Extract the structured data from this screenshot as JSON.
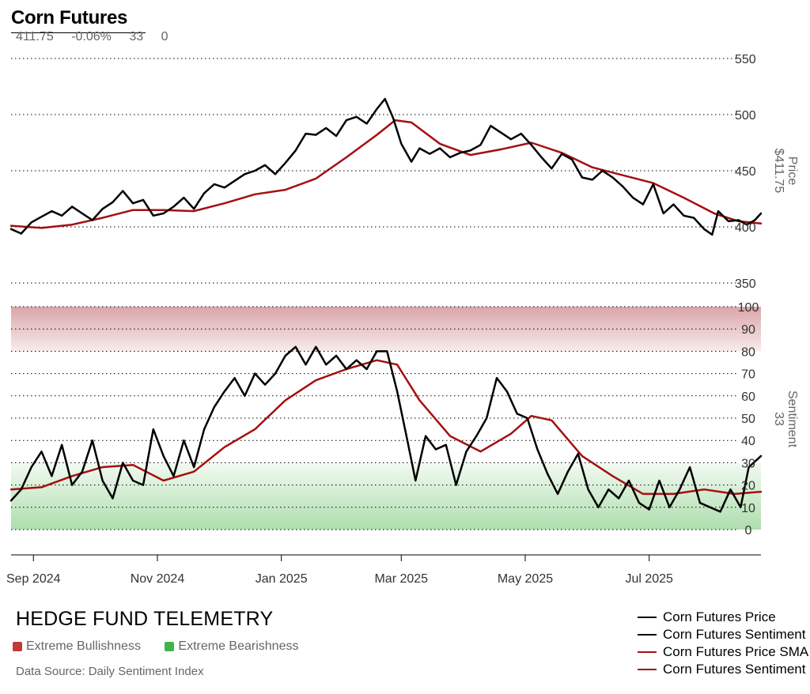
{
  "header": {
    "title": "Corn Futures",
    "last_price": "411.75",
    "change_pct": "-0.06%",
    "sentiment": "33",
    "extra": "0"
  },
  "colors": {
    "price_line": "#000000",
    "sentiment_line": "#000000",
    "sma_line": "#a50f0f",
    "bullish_zone": "#d9a0a4",
    "bearish_zone": "#a9dca9",
    "bullish_swatch": "#c0393b",
    "bearish_swatch": "#3cb54a"
  },
  "footer": {
    "brand": "HEDGE FUND TELEMETRY",
    "bullish_label": "Extreme Bullishness",
    "bearish_label": "Extreme Bearishness",
    "source": "Data Source: Daily Sentiment Index"
  },
  "legend": [
    {
      "label": "Corn Futures Price",
      "color": "#000000"
    },
    {
      "label": "Corn Futures Sentiment",
      "color": "#000000"
    },
    {
      "label": "Corn Futures Price SMA",
      "color": "#a50f0f"
    },
    {
      "label": "Corn Futures Sentiment SMA",
      "color": "#a50f0f"
    }
  ],
  "chart_data": [
    {
      "type": "line",
      "ylabel": "Price",
      "ylabel_value": "$411.75",
      "y_ticks": [
        "550",
        "500",
        "450",
        "400",
        "350"
      ],
      "ylim": [
        350,
        555
      ],
      "x_range": [
        "2024-08-21",
        "2025-08-25"
      ],
      "x_ticks": [
        {
          "date": "2024-09-01",
          "label": "Sep 2024"
        },
        {
          "date": "2024-11-01",
          "label": "Nov 2024"
        },
        {
          "date": "2025-01-01",
          "label": "Jan 2025"
        },
        {
          "date": "2025-03-01",
          "label": "Mar 2025"
        },
        {
          "date": "2025-05-01",
          "label": "May 2025"
        },
        {
          "date": "2025-07-01",
          "label": "Jul 2025"
        }
      ],
      "grid": "horizontal dotted",
      "series": [
        {
          "name": "Corn Futures Price",
          "points": [
            [
              "2024-08-21",
              398
            ],
            [
              "2024-08-26",
              394
            ],
            [
              "2024-08-31",
              404
            ],
            [
              "2024-09-05",
              409
            ],
            [
              "2024-09-10",
              414
            ],
            [
              "2024-09-15",
              410
            ],
            [
              "2024-09-20",
              418
            ],
            [
              "2024-09-25",
              412
            ],
            [
              "2024-09-30",
              406
            ],
            [
              "2024-10-05",
              416
            ],
            [
              "2024-10-10",
              422
            ],
            [
              "2024-10-15",
              432
            ],
            [
              "2024-10-20",
              421
            ],
            [
              "2024-10-25",
              424
            ],
            [
              "2024-10-30",
              410
            ],
            [
              "2024-11-04",
              412
            ],
            [
              "2024-11-09",
              418
            ],
            [
              "2024-11-14",
              426
            ],
            [
              "2024-11-19",
              416
            ],
            [
              "2024-11-24",
              430
            ],
            [
              "2024-11-29",
              438
            ],
            [
              "2024-12-04",
              435
            ],
            [
              "2024-12-09",
              441
            ],
            [
              "2024-12-14",
              447
            ],
            [
              "2024-12-19",
              450
            ],
            [
              "2024-12-24",
              455
            ],
            [
              "2024-12-29",
              447
            ],
            [
              "2025-01-03",
              457
            ],
            [
              "2025-01-08",
              468
            ],
            [
              "2025-01-13",
              483
            ],
            [
              "2025-01-18",
              482
            ],
            [
              "2025-01-23",
              488
            ],
            [
              "2025-01-28",
              481
            ],
            [
              "2025-02-02",
              495
            ],
            [
              "2025-02-07",
              498
            ],
            [
              "2025-02-12",
              492
            ],
            [
              "2025-02-17",
              505
            ],
            [
              "2025-02-21",
              514
            ],
            [
              "2025-02-25",
              497
            ],
            [
              "2025-03-01",
              474
            ],
            [
              "2025-03-06",
              458
            ],
            [
              "2025-03-10",
              470
            ],
            [
              "2025-03-15",
              465
            ],
            [
              "2025-03-20",
              470
            ],
            [
              "2025-03-25",
              462
            ],
            [
              "2025-03-30",
              466
            ],
            [
              "2025-04-04",
              468
            ],
            [
              "2025-04-09",
              473
            ],
            [
              "2025-04-14",
              490
            ],
            [
              "2025-04-19",
              484
            ],
            [
              "2025-04-24",
              478
            ],
            [
              "2025-04-29",
              483
            ],
            [
              "2025-05-04",
              473
            ],
            [
              "2025-05-09",
              462
            ],
            [
              "2025-05-14",
              452
            ],
            [
              "2025-05-19",
              465
            ],
            [
              "2025-05-24",
              460
            ],
            [
              "2025-05-29",
              444
            ],
            [
              "2025-06-03",
              442
            ],
            [
              "2025-06-08",
              450
            ],
            [
              "2025-06-13",
              444
            ],
            [
              "2025-06-18",
              436
            ],
            [
              "2025-06-23",
              426
            ],
            [
              "2025-06-28",
              420
            ],
            [
              "2025-07-03",
              438
            ],
            [
              "2025-07-08",
              412
            ],
            [
              "2025-07-13",
              420
            ],
            [
              "2025-07-18",
              410
            ],
            [
              "2025-07-23",
              408
            ],
            [
              "2025-07-28",
              398
            ],
            [
              "2025-08-01",
              393
            ],
            [
              "2025-08-04",
              414
            ],
            [
              "2025-08-09",
              405
            ],
            [
              "2025-08-14",
              406
            ],
            [
              "2025-08-18",
              402
            ],
            [
              "2025-08-22",
              406
            ],
            [
              "2025-08-25",
              412
            ]
          ]
        },
        {
          "name": "Corn Futures Price SMA",
          "points": [
            [
              "2024-08-21",
              401
            ],
            [
              "2024-09-05",
              399
            ],
            [
              "2024-09-20",
              402
            ],
            [
              "2024-10-05",
              408
            ],
            [
              "2024-10-20",
              415
            ],
            [
              "2024-11-04",
              415
            ],
            [
              "2024-11-19",
              414
            ],
            [
              "2024-12-04",
              421
            ],
            [
              "2024-12-19",
              429
            ],
            [
              "2025-01-03",
              433
            ],
            [
              "2025-01-18",
              443
            ],
            [
              "2025-02-02",
              462
            ],
            [
              "2025-02-17",
              482
            ],
            [
              "2025-02-26",
              495
            ],
            [
              "2025-03-06",
              493
            ],
            [
              "2025-03-20",
              474
            ],
            [
              "2025-04-04",
              464
            ],
            [
              "2025-04-19",
              469
            ],
            [
              "2025-05-04",
              475
            ],
            [
              "2025-05-19",
              466
            ],
            [
              "2025-06-03",
              453
            ],
            [
              "2025-06-18",
              446
            ],
            [
              "2025-07-03",
              439
            ],
            [
              "2025-07-18",
              426
            ],
            [
              "2025-08-02",
              412
            ],
            [
              "2025-08-14",
              405
            ],
            [
              "2025-08-25",
              403
            ]
          ]
        }
      ]
    },
    {
      "type": "line",
      "ylabel": "Sentiment",
      "ylabel_value": "33",
      "y_ticks": [
        "100",
        "90",
        "80",
        "70",
        "60",
        "50",
        "40",
        "30",
        "20",
        "10",
        "0"
      ],
      "ylim": [
        -10,
        100
      ],
      "bands": [
        {
          "label": "Extreme Bullishness",
          "from": 80,
          "to": 100
        },
        {
          "label": "Extreme Bearishness",
          "from": 0,
          "to": 30
        }
      ],
      "series": [
        {
          "name": "Corn Futures Sentiment",
          "points": [
            [
              "2024-08-21",
              13
            ],
            [
              "2024-08-26",
              18
            ],
            [
              "2024-08-31",
              28
            ],
            [
              "2024-09-05",
              35
            ],
            [
              "2024-09-10",
              24
            ],
            [
              "2024-09-15",
              38
            ],
            [
              "2024-09-20",
              20
            ],
            [
              "2024-09-25",
              26
            ],
            [
              "2024-09-30",
              40
            ],
            [
              "2024-10-05",
              22
            ],
            [
              "2024-10-10",
              14
            ],
            [
              "2024-10-15",
              30
            ],
            [
              "2024-10-20",
              22
            ],
            [
              "2024-10-25",
              20
            ],
            [
              "2024-10-30",
              45
            ],
            [
              "2024-11-04",
              33
            ],
            [
              "2024-11-09",
              24
            ],
            [
              "2024-11-14",
              40
            ],
            [
              "2024-11-19",
              28
            ],
            [
              "2024-11-24",
              45
            ],
            [
              "2024-11-29",
              55
            ],
            [
              "2024-12-04",
              62
            ],
            [
              "2024-12-09",
              68
            ],
            [
              "2024-12-14",
              60
            ],
            [
              "2024-12-19",
              70
            ],
            [
              "2024-12-24",
              65
            ],
            [
              "2024-12-29",
              70
            ],
            [
              "2025-01-03",
              78
            ],
            [
              "2025-01-08",
              82
            ],
            [
              "2025-01-13",
              74
            ],
            [
              "2025-01-18",
              82
            ],
            [
              "2025-01-23",
              74
            ],
            [
              "2025-01-28",
              78
            ],
            [
              "2025-02-02",
              72
            ],
            [
              "2025-02-07",
              76
            ],
            [
              "2025-02-12",
              72
            ],
            [
              "2025-02-17",
              80
            ],
            [
              "2025-02-22",
              80
            ],
            [
              "2025-02-27",
              62
            ],
            [
              "2025-03-04",
              40
            ],
            [
              "2025-03-08",
              22
            ],
            [
              "2025-03-13",
              42
            ],
            [
              "2025-03-18",
              36
            ],
            [
              "2025-03-23",
              38
            ],
            [
              "2025-03-28",
              20
            ],
            [
              "2025-04-02",
              35
            ],
            [
              "2025-04-07",
              42
            ],
            [
              "2025-04-12",
              50
            ],
            [
              "2025-04-17",
              68
            ],
            [
              "2025-04-22",
              62
            ],
            [
              "2025-04-27",
              52
            ],
            [
              "2025-05-02",
              50
            ],
            [
              "2025-05-07",
              36
            ],
            [
              "2025-05-12",
              25
            ],
            [
              "2025-05-17",
              16
            ],
            [
              "2025-05-22",
              26
            ],
            [
              "2025-05-27",
              34
            ],
            [
              "2025-06-01",
              18
            ],
            [
              "2025-06-06",
              10
            ],
            [
              "2025-06-11",
              18
            ],
            [
              "2025-06-16",
              14
            ],
            [
              "2025-06-21",
              22
            ],
            [
              "2025-06-26",
              12
            ],
            [
              "2025-07-01",
              9
            ],
            [
              "2025-07-06",
              22
            ],
            [
              "2025-07-11",
              10
            ],
            [
              "2025-07-16",
              18
            ],
            [
              "2025-07-21",
              28
            ],
            [
              "2025-07-26",
              12
            ],
            [
              "2025-07-31",
              10
            ],
            [
              "2025-08-05",
              8
            ],
            [
              "2025-08-10",
              18
            ],
            [
              "2025-08-15",
              10
            ],
            [
              "2025-08-19",
              28
            ],
            [
              "2025-08-25",
              33
            ]
          ]
        },
        {
          "name": "Corn Futures Sentiment SMA",
          "points": [
            [
              "2024-08-21",
              18
            ],
            [
              "2024-09-05",
              19
            ],
            [
              "2024-09-20",
              24
            ],
            [
              "2024-10-05",
              28
            ],
            [
              "2024-10-20",
              29
            ],
            [
              "2024-11-04",
              22
            ],
            [
              "2024-11-19",
              26
            ],
            [
              "2024-12-04",
              37
            ],
            [
              "2024-12-19",
              45
            ],
            [
              "2025-01-03",
              58
            ],
            [
              "2025-01-18",
              67
            ],
            [
              "2025-02-02",
              72
            ],
            [
              "2025-02-17",
              76
            ],
            [
              "2025-02-27",
              74
            ],
            [
              "2025-03-10",
              58
            ],
            [
              "2025-03-25",
              42
            ],
            [
              "2025-04-09",
              35
            ],
            [
              "2025-04-24",
              43
            ],
            [
              "2025-05-04",
              51
            ],
            [
              "2025-05-14",
              49
            ],
            [
              "2025-05-29",
              33
            ],
            [
              "2025-06-13",
              24
            ],
            [
              "2025-06-28",
              16
            ],
            [
              "2025-07-13",
              16
            ],
            [
              "2025-07-28",
              18
            ],
            [
              "2025-08-12",
              16
            ],
            [
              "2025-08-25",
              17
            ]
          ]
        }
      ]
    }
  ]
}
